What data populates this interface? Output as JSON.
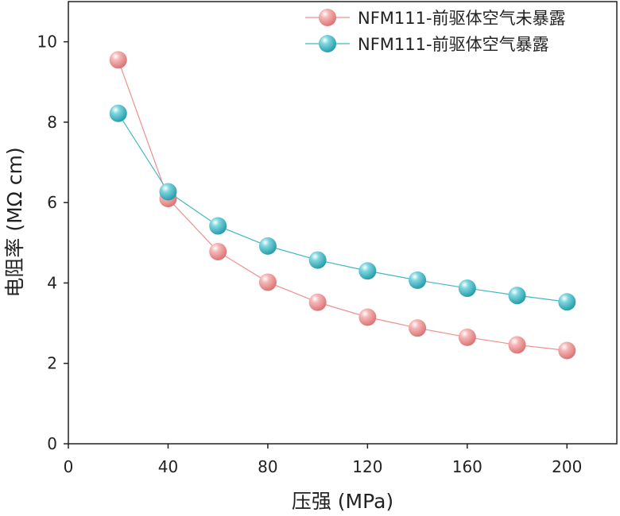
{
  "chart_data": {
    "type": "line",
    "title": "",
    "xlabel": "压强 (MPa)",
    "ylabel": "电阻率 (MΩ cm)",
    "xlim": [
      0,
      220
    ],
    "ylim": [
      0,
      11
    ],
    "xticks": [
      0,
      40,
      80,
      120,
      160,
      200
    ],
    "yticks": [
      0,
      2,
      4,
      6,
      8,
      10
    ],
    "x": [
      20,
      40,
      60,
      80,
      100,
      120,
      140,
      160,
      180,
      200
    ],
    "series": [
      {
        "name": "NFM111-前驱体空气未暴露",
        "color": "#ee8f8f",
        "values": [
          9.55,
          6.1,
          4.78,
          4.02,
          3.52,
          3.15,
          2.88,
          2.65,
          2.46,
          2.32
        ]
      },
      {
        "name": "NFM111-前驱体空气暴露",
        "color": "#41b8c4",
        "values": [
          8.22,
          6.27,
          5.42,
          4.92,
          4.57,
          4.3,
          4.07,
          3.87,
          3.69,
          3.53
        ]
      }
    ],
    "legend": "top-right",
    "grid": false
  }
}
